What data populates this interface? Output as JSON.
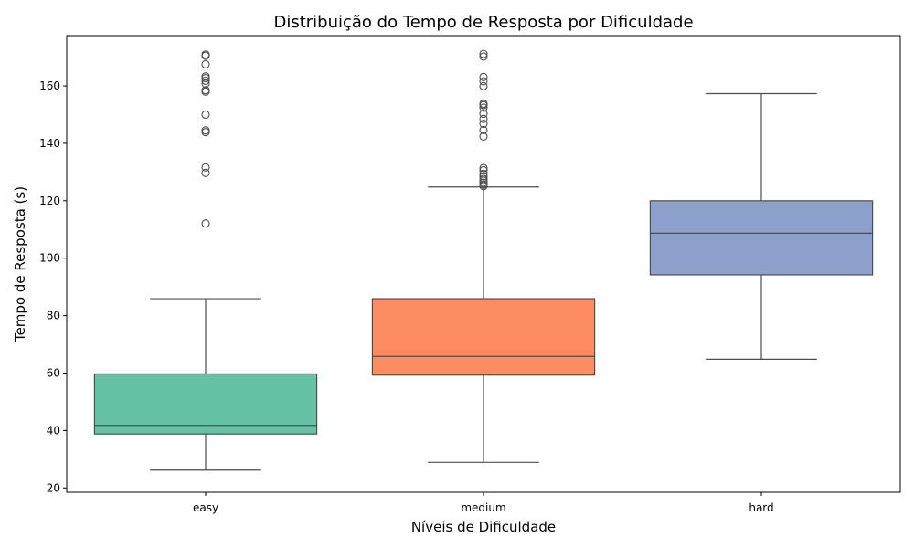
{
  "chart_data": {
    "type": "box",
    "title": "Distribuição do Tempo de Resposta por Dificuldade",
    "xlabel": "Níveis de Dificuldade",
    "ylabel": "Tempo de Resposta (s)",
    "ylim": [
      18.5,
      177.5
    ],
    "yticks": [
      20,
      40,
      60,
      80,
      100,
      120,
      140,
      160
    ],
    "grid": false,
    "categories": [
      "easy",
      "medium",
      "hard"
    ],
    "colors": [
      "#66c2a5",
      "#fc8d62",
      "#8da0cb"
    ],
    "boxes": [
      {
        "category": "easy",
        "whisker_low": 26.2,
        "q1": 38.8,
        "median": 41.8,
        "q3": 59.7,
        "whisker_high": 85.9,
        "outliers": [
          112.1,
          129.7,
          131.6,
          143.9,
          144.5,
          150.0,
          158.0,
          158.5,
          160.8,
          161.8,
          162.7,
          163.3,
          167.5,
          170.5,
          170.9
        ]
      },
      {
        "category": "medium",
        "whisker_low": 28.9,
        "q1": 59.3,
        "median": 65.8,
        "q3": 85.9,
        "whisker_high": 124.8,
        "outliers": [
          125.1,
          125.6,
          126.3,
          127.0,
          127.6,
          128.5,
          129.4,
          130.6,
          131.4,
          142.4,
          144.6,
          146.8,
          148.5,
          150.3,
          152.4,
          153.3,
          153.8,
          159.9,
          161.6,
          163.1,
          170.2,
          171.1
        ]
      },
      {
        "category": "hard",
        "whisker_low": 64.8,
        "q1": 94.2,
        "median": 108.7,
        "q3": 120.0,
        "whisker_high": 157.3,
        "outliers": []
      }
    ]
  }
}
